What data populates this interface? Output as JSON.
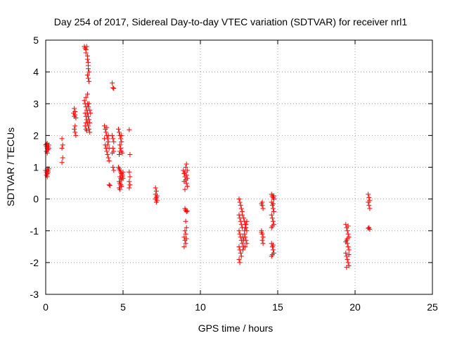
{
  "chart_data": {
    "type": "scatter",
    "title": "Day 254 of 2017, Sidereal Day-to-day VTEC variation (SDTVAR) for receiver nrl1",
    "xlabel": "GPS time / hours",
    "ylabel": "SDTVAR / TECUs",
    "xlim": [
      0,
      25
    ],
    "ylim": [
      -3,
      5
    ],
    "xticks": [
      0,
      5,
      10,
      15,
      20,
      25
    ],
    "yticks": [
      -3,
      -2,
      -1,
      0,
      1,
      2,
      3,
      4,
      5
    ],
    "grid": true,
    "marker": "+",
    "colors": {
      "marker": "#ff0000",
      "grid": "#a0a0a0",
      "axis": "#000000"
    },
    "series": [
      {
        "name": "SDTVAR",
        "points": [
          [
            0.0,
            1.7
          ],
          [
            0.05,
            1.65
          ],
          [
            0.1,
            1.6
          ],
          [
            0.05,
            1.5
          ],
          [
            0.1,
            1.45
          ],
          [
            0.15,
            1.55
          ],
          [
            0.2,
            1.7
          ],
          [
            0.15,
            1.65
          ],
          [
            0.2,
            1.6
          ],
          [
            0.1,
            1.75
          ],
          [
            0.05,
            1.72
          ],
          [
            0.0,
            0.9
          ],
          [
            0.05,
            0.85
          ],
          [
            0.1,
            0.95
          ],
          [
            0.05,
            0.75
          ],
          [
            0.1,
            0.8
          ],
          [
            0.15,
            0.9
          ],
          [
            0.2,
            0.95
          ],
          [
            0.15,
            0.85
          ],
          [
            0.1,
            0.7
          ],
          [
            1.05,
            1.9
          ],
          [
            1.1,
            1.7
          ],
          [
            1.05,
            1.6
          ],
          [
            1.1,
            1.3
          ],
          [
            1.05,
            1.15
          ],
          [
            1.8,
            2.7
          ],
          [
            1.85,
            2.6
          ],
          [
            1.9,
            2.65
          ],
          [
            1.95,
            2.55
          ],
          [
            1.9,
            2.3
          ],
          [
            1.85,
            2.2
          ],
          [
            1.9,
            2.1
          ],
          [
            1.95,
            2.0
          ],
          [
            1.85,
            2.85
          ],
          [
            1.9,
            2.75
          ],
          [
            2.5,
            4.8
          ],
          [
            2.55,
            4.75
          ],
          [
            2.6,
            4.7
          ],
          [
            2.6,
            4.6
          ],
          [
            2.65,
            4.8
          ],
          [
            2.7,
            4.5
          ],
          [
            2.7,
            4.4
          ],
          [
            2.75,
            4.3
          ],
          [
            2.75,
            4.1
          ],
          [
            2.8,
            4.0
          ],
          [
            2.7,
            3.9
          ],
          [
            2.75,
            3.8
          ],
          [
            2.8,
            3.7
          ],
          [
            2.75,
            4.2
          ],
          [
            2.5,
            3.1
          ],
          [
            2.55,
            3.0
          ],
          [
            2.6,
            2.9
          ],
          [
            2.65,
            2.8
          ],
          [
            2.7,
            2.7
          ],
          [
            2.75,
            2.6
          ],
          [
            2.8,
            2.5
          ],
          [
            2.85,
            2.4
          ],
          [
            2.6,
            3.2
          ],
          [
            2.7,
            3.3
          ],
          [
            2.55,
            2.7
          ],
          [
            2.6,
            2.6
          ],
          [
            2.65,
            2.5
          ],
          [
            2.7,
            2.4
          ],
          [
            2.75,
            2.3
          ],
          [
            2.8,
            2.2
          ],
          [
            2.85,
            2.1
          ],
          [
            2.55,
            2.3
          ],
          [
            2.6,
            2.2
          ],
          [
            2.65,
            2.15
          ],
          [
            2.75,
            2.9
          ],
          [
            2.8,
            3.0
          ],
          [
            2.85,
            2.8
          ],
          [
            2.9,
            2.7
          ],
          [
            2.7,
            3.0
          ],
          [
            2.6,
            2.4
          ],
          [
            3.8,
            2.3
          ],
          [
            3.85,
            2.2
          ],
          [
            3.9,
            2.1
          ],
          [
            3.95,
            2.0
          ],
          [
            4.0,
            1.9
          ],
          [
            4.05,
            1.8
          ],
          [
            3.85,
            1.7
          ],
          [
            3.9,
            1.6
          ],
          [
            3.95,
            1.5
          ],
          [
            4.0,
            1.4
          ],
          [
            4.05,
            1.3
          ],
          [
            4.1,
            1.2
          ],
          [
            3.8,
            1.9
          ],
          [
            3.95,
            2.25
          ],
          [
            4.0,
            1.7
          ],
          [
            4.05,
            2.0
          ],
          [
            4.1,
            1.6
          ],
          [
            4.1,
            0.45
          ],
          [
            4.15,
            0.42
          ],
          [
            4.3,
            3.65
          ],
          [
            4.35,
            3.5
          ],
          [
            4.4,
            3.48
          ],
          [
            4.3,
            2.0
          ],
          [
            4.35,
            1.9
          ],
          [
            4.4,
            1.8
          ],
          [
            4.35,
            1.6
          ],
          [
            4.4,
            1.5
          ],
          [
            4.3,
            1.45
          ],
          [
            4.35,
            1.0
          ],
          [
            4.4,
            0.9
          ],
          [
            4.7,
            2.2
          ],
          [
            4.75,
            2.1
          ],
          [
            4.8,
            2.0
          ],
          [
            4.85,
            1.9
          ],
          [
            4.9,
            1.8
          ],
          [
            4.8,
            1.7
          ],
          [
            4.85,
            1.6
          ],
          [
            4.9,
            1.5
          ],
          [
            4.95,
            1.45
          ],
          [
            4.75,
            1.4
          ],
          [
            4.8,
            1.5
          ],
          [
            4.9,
            2.0
          ],
          [
            4.7,
            1.0
          ],
          [
            4.75,
            0.95
          ],
          [
            4.8,
            0.9
          ],
          [
            4.85,
            0.85
          ],
          [
            4.9,
            0.8
          ],
          [
            4.95,
            0.75
          ],
          [
            4.8,
            0.7
          ],
          [
            4.85,
            0.65
          ],
          [
            4.9,
            0.6
          ],
          [
            4.75,
            0.55
          ],
          [
            4.8,
            0.5
          ],
          [
            4.85,
            0.45
          ],
          [
            4.9,
            0.4
          ],
          [
            4.95,
            0.7
          ],
          [
            5.0,
            0.65
          ],
          [
            4.75,
            0.35
          ],
          [
            5.0,
            0.85
          ],
          [
            4.8,
            0.3
          ],
          [
            5.4,
            2.18
          ],
          [
            5.45,
            1.4
          ],
          [
            5.4,
            0.85
          ],
          [
            5.45,
            0.7
          ],
          [
            5.4,
            0.55
          ],
          [
            5.45,
            0.45
          ],
          [
            5.4,
            0.35
          ],
          [
            7.1,
            0.35
          ],
          [
            7.15,
            0.25
          ],
          [
            7.1,
            0.15
          ],
          [
            7.2,
            0.1
          ],
          [
            7.15,
            0.05
          ],
          [
            7.1,
            0.0
          ],
          [
            7.2,
            -0.05
          ],
          [
            7.15,
            -0.1
          ],
          [
            8.9,
            0.9
          ],
          [
            8.95,
            0.8
          ],
          [
            9.0,
            0.7
          ],
          [
            9.05,
            0.6
          ],
          [
            9.1,
            0.5
          ],
          [
            9.15,
            0.4
          ],
          [
            9.0,
            0.85
          ],
          [
            9.1,
            0.75
          ],
          [
            9.15,
            0.65
          ],
          [
            8.95,
            0.55
          ],
          [
            9.05,
            1.0
          ],
          [
            9.1,
            1.1
          ],
          [
            9.0,
            0.3
          ],
          [
            9.15,
            0.9
          ],
          [
            9.0,
            -0.3
          ],
          [
            9.05,
            -0.35
          ],
          [
            9.1,
            -0.4
          ],
          [
            9.15,
            -0.38
          ],
          [
            9.05,
            -0.7
          ],
          [
            9.1,
            -0.9
          ],
          [
            9.0,
            -1.0
          ],
          [
            9.05,
            -1.1
          ],
          [
            8.95,
            -1.2
          ],
          [
            9.0,
            -1.3
          ],
          [
            9.05,
            -1.4
          ],
          [
            8.95,
            -1.5
          ],
          [
            9.1,
            -1.25
          ],
          [
            12.5,
            0.0
          ],
          [
            12.55,
            -0.1
          ],
          [
            12.6,
            -0.2
          ],
          [
            12.65,
            -0.3
          ],
          [
            12.7,
            -0.4
          ],
          [
            12.5,
            -0.5
          ],
          [
            12.55,
            -0.6
          ],
          [
            12.6,
            -0.7
          ],
          [
            12.65,
            -0.8
          ],
          [
            12.7,
            -0.9
          ],
          [
            12.5,
            -1.0
          ],
          [
            12.55,
            -1.1
          ],
          [
            12.6,
            -1.2
          ],
          [
            12.65,
            -1.3
          ],
          [
            12.7,
            -1.4
          ],
          [
            12.5,
            -1.5
          ],
          [
            12.55,
            -1.6
          ],
          [
            12.6,
            -1.7
          ],
          [
            12.65,
            -1.8
          ],
          [
            12.5,
            -1.9
          ],
          [
            12.55,
            -2.0
          ],
          [
            12.8,
            -0.6
          ],
          [
            12.85,
            -0.7
          ],
          [
            12.9,
            -0.8
          ],
          [
            12.95,
            -0.9
          ],
          [
            13.0,
            -1.0
          ],
          [
            12.85,
            -1.1
          ],
          [
            12.9,
            -1.2
          ],
          [
            12.95,
            -1.3
          ],
          [
            13.0,
            -1.4
          ],
          [
            12.8,
            -1.5
          ],
          [
            12.85,
            -1.0
          ],
          [
            12.9,
            -0.9
          ],
          [
            12.75,
            -1.2
          ],
          [
            12.8,
            -1.3
          ],
          [
            12.95,
            -0.8
          ],
          [
            13.0,
            -0.7
          ],
          [
            12.7,
            -0.5
          ],
          [
            12.75,
            -1.6
          ],
          [
            12.9,
            -1.5
          ],
          [
            13.95,
            -0.15
          ],
          [
            14.0,
            -0.2
          ],
          [
            14.05,
            -0.3
          ],
          [
            14.0,
            -0.1
          ],
          [
            13.95,
            -1.0
          ],
          [
            14.0,
            -1.1
          ],
          [
            14.05,
            -1.2
          ],
          [
            14.0,
            -1.3
          ],
          [
            14.05,
            -1.4
          ],
          [
            13.95,
            -1.05
          ],
          [
            14.6,
            0.15
          ],
          [
            14.65,
            0.1
          ],
          [
            14.7,
            0.05
          ],
          [
            14.75,
            0.0
          ],
          [
            14.6,
            -0.1
          ],
          [
            14.65,
            -0.2
          ],
          [
            14.7,
            -0.3
          ],
          [
            14.75,
            -0.4
          ],
          [
            14.6,
            -0.5
          ],
          [
            14.65,
            -0.6
          ],
          [
            14.7,
            -0.7
          ],
          [
            14.75,
            -0.8
          ],
          [
            14.6,
            -0.9
          ],
          [
            14.65,
            -0.85
          ],
          [
            14.7,
            -0.15
          ],
          [
            14.75,
            0.1
          ],
          [
            14.6,
            -1.4
          ],
          [
            14.65,
            -1.5
          ],
          [
            14.7,
            -1.6
          ],
          [
            14.75,
            -1.7
          ],
          [
            14.6,
            -1.8
          ],
          [
            14.65,
            -1.75
          ],
          [
            14.7,
            -1.45
          ],
          [
            19.4,
            -0.8
          ],
          [
            19.45,
            -0.9
          ],
          [
            19.5,
            -1.0
          ],
          [
            19.55,
            -1.1
          ],
          [
            19.6,
            -1.2
          ],
          [
            19.45,
            -1.3
          ],
          [
            19.5,
            -1.4
          ],
          [
            19.55,
            -1.5
          ],
          [
            19.6,
            -1.6
          ],
          [
            19.4,
            -1.7
          ],
          [
            19.45,
            -1.8
          ],
          [
            19.5,
            -1.9
          ],
          [
            19.55,
            -2.0
          ],
          [
            19.6,
            -2.1
          ],
          [
            19.45,
            -2.15
          ],
          [
            19.5,
            -1.25
          ],
          [
            19.55,
            -0.85
          ],
          [
            19.6,
            -1.75
          ],
          [
            19.4,
            -1.35
          ],
          [
            20.85,
            0.15
          ],
          [
            20.9,
            0.05
          ],
          [
            20.95,
            -0.05
          ],
          [
            20.85,
            -0.1
          ],
          [
            20.9,
            -0.2
          ],
          [
            20.95,
            -0.3
          ],
          [
            20.9,
            -0.9
          ],
          [
            20.95,
            -0.95
          ],
          [
            20.85,
            -0.92
          ]
        ]
      }
    ]
  }
}
